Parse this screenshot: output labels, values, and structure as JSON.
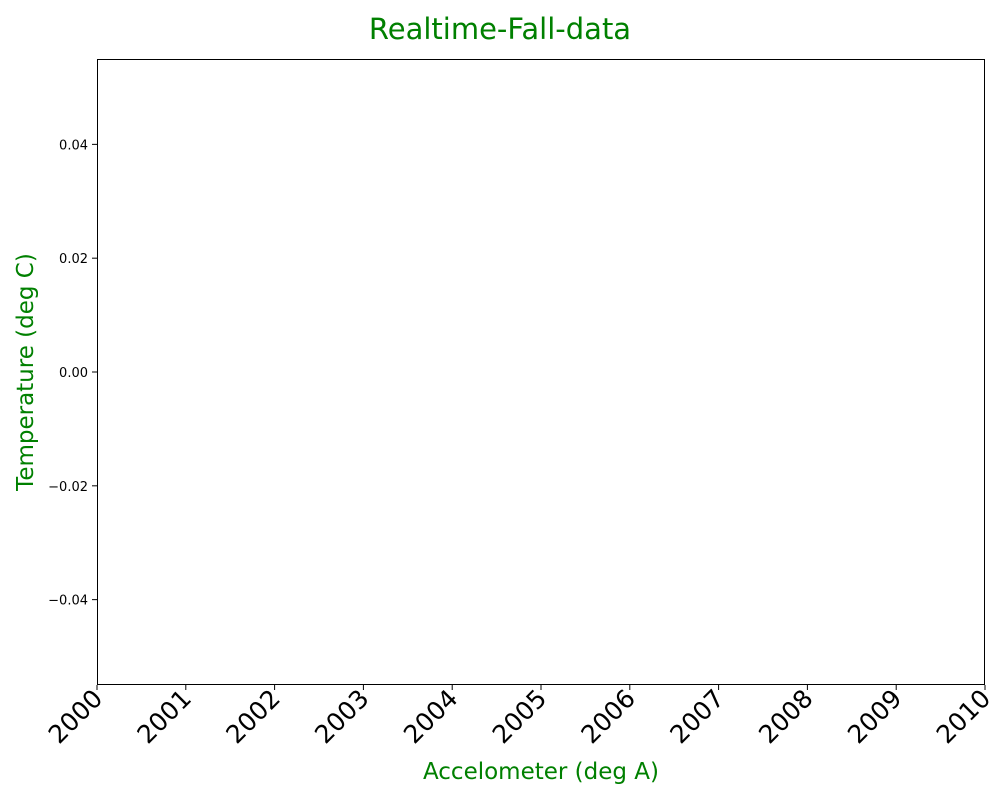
{
  "chart_data": {
    "type": "line",
    "title": "Realtime-Fall-data",
    "xlabel": "Accelometer (deg A)",
    "ylabel": "Temperature (deg C)",
    "x_ticks": [
      "2000",
      "2001",
      "2002",
      "2003",
      "2004",
      "2005",
      "2006",
      "2007",
      "2008",
      "2009",
      "2010"
    ],
    "y_ticks": [
      "0.04",
      "0.02",
      "0.00",
      "−0.02",
      "−0.04"
    ],
    "y_tick_values": [
      0.04,
      0.02,
      0.0,
      -0.02,
      -0.04
    ],
    "xlim": [
      2000,
      2010
    ],
    "ylim": [
      -0.055,
      0.055
    ],
    "series": [],
    "grid": false,
    "label_color": "#008000"
  }
}
